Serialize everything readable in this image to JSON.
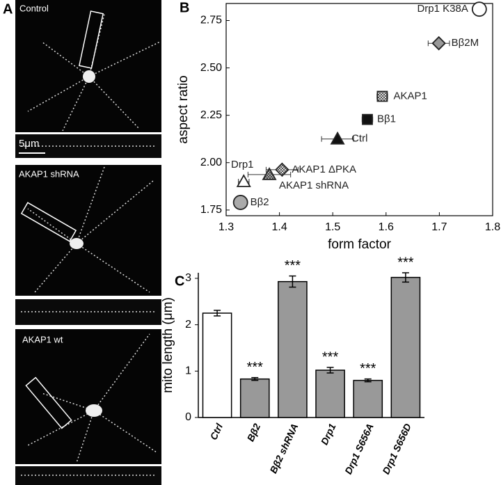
{
  "panel_a": {
    "letter": "A",
    "images": [
      {
        "label": "Control"
      },
      {
        "label": "AKAP1 shRNA"
      },
      {
        "label": "AKAP1 wt"
      }
    ],
    "scale_bar": "5μm"
  },
  "chart_data": [
    {
      "type": "scatter",
      "panel": "B",
      "xlabel": "form factor",
      "ylabel": "aspect ratio",
      "xlim": [
        1.3,
        1.8
      ],
      "xticks": [
        1.3,
        1.4,
        1.5,
        1.6,
        1.7,
        1.8
      ],
      "ylim": [
        1.72,
        2.84
      ],
      "yticks": [
        1.75,
        {
          "value": 2,
          "label": "2.00"
        },
        2.25,
        {
          "value": 2.5,
          "label": "2.50"
        },
        2.75
      ],
      "series": [
        {
          "name": "Drp1 K38A",
          "marker": "circle",
          "color": "#ffffff",
          "x": [
            1.775
          ],
          "values": [
            2.81
          ],
          "xerr": [
            0.01
          ]
        },
        {
          "name": "Bβ2M",
          "marker": "diamond",
          "color": "#999999",
          "x": [
            1.699
          ],
          "values": [
            2.63
          ],
          "xerr": [
            0.02
          ]
        },
        {
          "name": "AKAP1",
          "marker": "square",
          "color": "#ffffff",
          "hatch": true,
          "x": [
            1.593
          ],
          "values": [
            2.35
          ],
          "xerr": [
            0.01
          ]
        },
        {
          "name": "Bβ1",
          "marker": "square",
          "color": "#111111",
          "x": [
            1.565
          ],
          "values": [
            2.228
          ],
          "xerr": [
            0.01
          ]
        },
        {
          "name": "Ctrl",
          "marker": "triangle",
          "color": "#111111",
          "x": [
            1.509
          ],
          "values": [
            2.125
          ],
          "xerr": [
            0.03
          ]
        },
        {
          "name": "AKAP1 ΔPKA",
          "marker": "diamond",
          "color": "#ffffff",
          "hatch": true,
          "x": [
            1.405
          ],
          "values": [
            1.963
          ],
          "xerr": [
            0.03
          ]
        },
        {
          "name": "AKAP1 shRNA",
          "marker": "triangle",
          "color": "#bbbbbb",
          "hatch": true,
          "x": [
            1.381
          ],
          "values": [
            1.937
          ],
          "xerr": [
            0.04
          ]
        },
        {
          "name": "Drp1",
          "marker": "triangle",
          "color": "#ffffff",
          "x": [
            1.333
          ],
          "values": [
            1.9
          ],
          "xerr": [
            0.01
          ]
        },
        {
          "name": "Bβ2",
          "marker": "circle",
          "color": "#aaaaaa",
          "x": [
            1.327
          ],
          "values": [
            1.79
          ],
          "xerr": [
            0.005
          ]
        }
      ]
    },
    {
      "type": "bar",
      "panel": "C",
      "ylabel": "mito length (μm)",
      "categories": [
        "Ctrl",
        "Bβ2",
        "Bβ2 shRNA",
        "Drp1",
        "Drp1 S656A",
        "Drp1 S656D"
      ],
      "values": [
        2.25,
        0.83,
        2.93,
        1.02,
        0.8,
        3.02
      ],
      "errors": [
        0.06,
        0.03,
        0.12,
        0.06,
        0.03,
        0.1
      ],
      "colors": [
        "#ffffff",
        "#999999",
        "#999999",
        "#999999",
        "#999999",
        "#999999"
      ],
      "annotations": [
        null,
        "***",
        "***",
        "***",
        "***",
        "***"
      ],
      "ylim": [
        0,
        3.12
      ],
      "yticks": [
        0,
        1,
        2,
        3
      ]
    }
  ]
}
